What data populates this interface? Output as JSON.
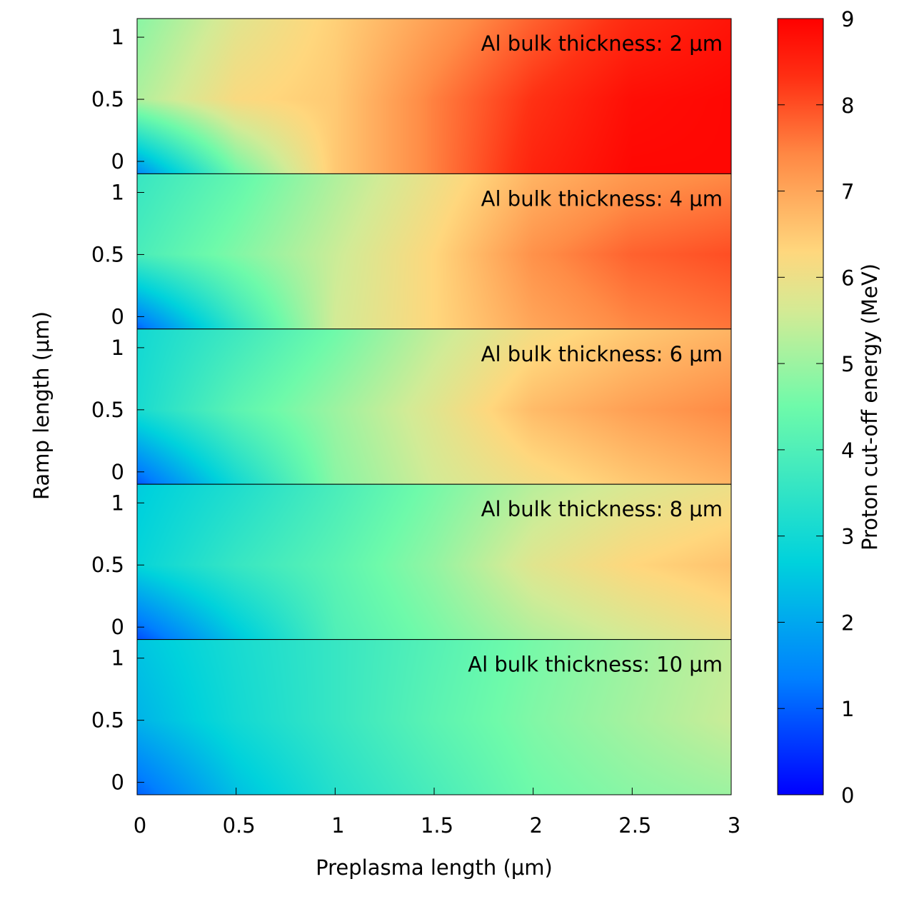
{
  "chart_data": {
    "type": "heatmap",
    "xlabel": "Preplasma length (μm)",
    "ylabel": "Ramp length (μm)",
    "x_ticks": [
      "0",
      "0.5",
      "1",
      "1.5",
      "2",
      "2.5",
      "3"
    ],
    "x_tick_values": [
      0,
      0.5,
      1,
      1.5,
      2,
      2.5,
      3
    ],
    "xlim": [
      0,
      3
    ],
    "y_ticks": [
      "0",
      "0.5",
      "1"
    ],
    "y_tick_values": [
      0,
      0.5,
      1
    ],
    "ylim": [
      -0.1,
      1.15
    ],
    "colorbar": {
      "label": "Proton cut-off energy (MeV)",
      "range": [
        0,
        9
      ],
      "ticks": [
        "0",
        "1",
        "2",
        "3",
        "4",
        "5",
        "6",
        "7",
        "8",
        "9"
      ],
      "tick_values": [
        0,
        1,
        2,
        3,
        4,
        5,
        6,
        7,
        8,
        9
      ],
      "colormap": "rainbow"
    },
    "grid_x": [
      0,
      0.5,
      1,
      1.5,
      2,
      2.5,
      3
    ],
    "grid_y": [
      -0.1,
      0.5,
      1.15
    ],
    "panels": [
      {
        "label": "Al bulk thickness: 2 μm",
        "values": [
          [
            1.5,
            4.5,
            6.5,
            7.5,
            8.5,
            8.9,
            8.9
          ],
          [
            5.2,
            6.2,
            6.5,
            7.5,
            8.3,
            8.8,
            8.9
          ],
          [
            4.8,
            5.8,
            6.4,
            7.1,
            7.8,
            8.4,
            8.7
          ]
        ]
      },
      {
        "label": "Al bulk thickness: 4 μm",
        "values": [
          [
            1.0,
            3.5,
            5.6,
            6.3,
            7.0,
            7.4,
            7.6
          ],
          [
            3.9,
            4.7,
            5.5,
            6.3,
            7.3,
            7.8,
            8.0
          ],
          [
            3.6,
            4.3,
            5.2,
            6.0,
            6.8,
            7.2,
            7.4
          ]
        ]
      },
      {
        "label": "Al bulk thickness: 6 μm",
        "values": [
          [
            0.9,
            3.0,
            4.8,
            5.6,
            6.1,
            6.5,
            6.8
          ],
          [
            3.1,
            4.2,
            5.0,
            5.8,
            6.7,
            7.1,
            7.4
          ],
          [
            3.0,
            3.7,
            4.5,
            5.4,
            6.1,
            6.5,
            6.8
          ]
        ]
      },
      {
        "label": "Al bulk thickness: 8 μm",
        "values": [
          [
            0.8,
            2.5,
            4.0,
            4.6,
            5.2,
            5.6,
            6.0
          ],
          [
            2.8,
            3.6,
            4.2,
            4.9,
            5.8,
            6.3,
            6.6
          ],
          [
            2.6,
            3.2,
            3.9,
            4.6,
            5.3,
            5.7,
            6.0
          ]
        ]
      },
      {
        "label": "Al bulk thickness: 10 μm",
        "values": [
          [
            1.0,
            2.4,
            3.3,
            3.9,
            4.5,
            4.8,
            5.0
          ],
          [
            2.2,
            3.0,
            3.6,
            4.2,
            4.7,
            5.1,
            5.5
          ],
          [
            2.5,
            3.1,
            3.6,
            4.1,
            4.6,
            5.0,
            5.4
          ]
        ]
      }
    ]
  }
}
